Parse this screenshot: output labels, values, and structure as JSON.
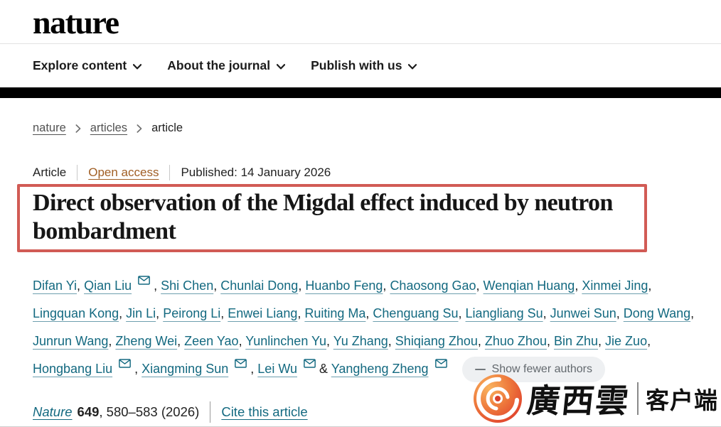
{
  "header": {
    "logo": "nature",
    "nav_items": [
      {
        "label": "Explore content"
      },
      {
        "label": "About the journal"
      },
      {
        "label": "Publish with us"
      }
    ]
  },
  "breadcrumb": {
    "items": [
      {
        "label": "nature",
        "current": false
      },
      {
        "label": "articles",
        "current": false
      },
      {
        "label": "article",
        "current": true
      }
    ]
  },
  "article": {
    "type_label": "Article",
    "access_label": "Open access",
    "published_label": "Published: 14 January 2026",
    "title": "Direct observation of the Migdal effect induced by neutron bombardment",
    "authors": [
      {
        "name": "Difan Yi",
        "email": false
      },
      {
        "name": "Qian Liu",
        "email": true
      },
      {
        "name": "Shi Chen",
        "email": false
      },
      {
        "name": "Chunlai Dong",
        "email": false
      },
      {
        "name": "Huanbo Feng",
        "email": false
      },
      {
        "name": "Chaosong Gao",
        "email": false
      },
      {
        "name": "Wenqian Huang",
        "email": false
      },
      {
        "name": "Xinmei Jing",
        "email": false
      },
      {
        "name": "Lingquan Kong",
        "email": false
      },
      {
        "name": "Jin Li",
        "email": false
      },
      {
        "name": "Peirong Li",
        "email": false
      },
      {
        "name": "Enwei Liang",
        "email": false
      },
      {
        "name": "Ruiting Ma",
        "email": false
      },
      {
        "name": "Chenguang Su",
        "email": false
      },
      {
        "name": "Liangliang Su",
        "email": false
      },
      {
        "name": "Junwei Sun",
        "email": false
      },
      {
        "name": "Dong Wang",
        "email": false
      },
      {
        "name": "Junrun Wang",
        "email": false
      },
      {
        "name": "Zheng Wei",
        "email": false
      },
      {
        "name": "Zeen Yao",
        "email": false
      },
      {
        "name": "Yunlinchen Yu",
        "email": false
      },
      {
        "name": "Yu Zhang",
        "email": false
      },
      {
        "name": "Shiqiang Zhou",
        "email": false
      },
      {
        "name": "Zhuo Zhou",
        "email": false
      },
      {
        "name": "Bin Zhu",
        "email": false
      },
      {
        "name": "Jie Zuo",
        "email": false
      },
      {
        "name": "Hongbang Liu",
        "email": true
      },
      {
        "name": "Xiangming Sun",
        "email": true
      },
      {
        "name": "Lei Wu",
        "email": true
      },
      {
        "name": "Yangheng Zheng",
        "email": true
      }
    ],
    "separator": ", ",
    "and_separator": "&",
    "show_fewer_label": "Show fewer authors",
    "citation": {
      "journal": "Nature",
      "volume": "649",
      "pages": ", 580–583 (2026)",
      "cite_label": "Cite this article"
    }
  },
  "watermark": {
    "brand": "廣西雲",
    "suffix": "客户端"
  },
  "colors": {
    "link_teal": "#136980",
    "open_access": "#a05e24",
    "highlight_box_red": "#d15b55",
    "nav_bar": "#000000",
    "show_fewer_bg": "#eef0f2"
  },
  "icons": {
    "nav_chevron": "chevron-down",
    "breadcrumb_separator": "chevron-right",
    "author_email": "envelope",
    "show_fewer": "minus",
    "watermark_logo": "orange-swirl"
  }
}
